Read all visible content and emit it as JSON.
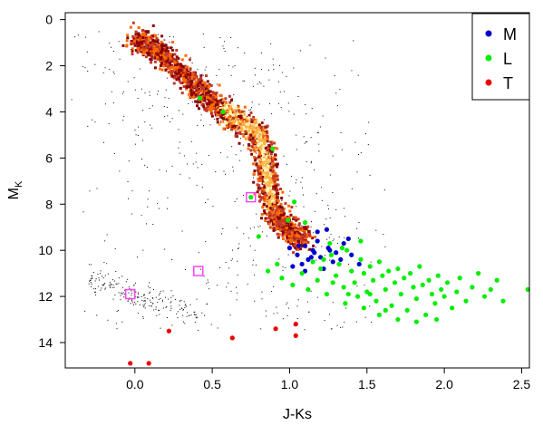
{
  "chart_data": {
    "type": "scatter",
    "title": "",
    "xlabel": "J-Ks",
    "ylabel_main": "M",
    "ylabel_sub": "K",
    "xlim": [
      -0.45,
      2.55
    ],
    "ylim": [
      15.1,
      -0.3
    ],
    "y_inverted": true,
    "x_ticks": [
      0.0,
      0.5,
      1.0,
      1.5,
      2.0,
      2.5
    ],
    "x_tick_labels": [
      "0.0",
      "0.5",
      "1.0",
      "1.5",
      "2.0",
      "2.5"
    ],
    "y_ticks": [
      0,
      2,
      4,
      6,
      8,
      10,
      12,
      14
    ],
    "y_tick_labels": [
      "0",
      "2",
      "4",
      "6",
      "8",
      "10",
      "12",
      "14"
    ],
    "grid": false,
    "legend_position": "top-right",
    "legend": [
      {
        "label": "M",
        "color": "#0000cc"
      },
      {
        "label": "L",
        "color": "#00ee00"
      },
      {
        "label": "T",
        "color": "#ee0000"
      }
    ],
    "background_density": {
      "description_only": false,
      "sequence_ridge": [
        [
          0.0,
          0.8
        ],
        [
          0.12,
          1.2
        ],
        [
          0.25,
          2.0
        ],
        [
          0.38,
          2.8
        ],
        [
          0.5,
          3.6
        ],
        [
          0.62,
          4.2
        ],
        [
          0.72,
          4.6
        ],
        [
          0.8,
          5.0
        ],
        [
          0.84,
          5.8
        ],
        [
          0.86,
          6.8
        ],
        [
          0.88,
          7.8
        ],
        [
          0.92,
          8.6
        ],
        [
          1.0,
          9.2
        ],
        [
          1.1,
          9.6
        ]
      ],
      "colors": [
        "#8b0000",
        "#c0392b",
        "#ff6a00",
        "#ffb347",
        "#fff2b3"
      ]
    },
    "series": [
      {
        "name": "M",
        "color": "#0000cc",
        "points": [
          [
            1.0,
            9.9
          ],
          [
            1.05,
            10.2
          ],
          [
            1.1,
            9.8
          ],
          [
            1.12,
            10.4
          ],
          [
            1.15,
            10.0
          ],
          [
            1.18,
            9.6
          ],
          [
            1.2,
            10.3
          ],
          [
            1.22,
            10.8
          ],
          [
            1.25,
            9.9
          ],
          [
            1.28,
            10.5
          ],
          [
            1.1,
            10.9
          ],
          [
            1.08,
            10.6
          ],
          [
            1.3,
            10.1
          ],
          [
            1.35,
            9.7
          ],
          [
            1.4,
            10.2
          ],
          [
            1.45,
            10.6
          ],
          [
            1.02,
            10.7
          ],
          [
            1.14,
            10.3
          ],
          [
            1.26,
            10.0
          ],
          [
            1.33,
            10.4
          ],
          [
            1.18,
            9.2
          ],
          [
            1.24,
            9.1
          ],
          [
            1.38,
            9.5
          ],
          [
            1.16,
            10.1
          ],
          [
            1.06,
            9.8
          ]
        ]
      },
      {
        "name": "L",
        "color": "#00ee00",
        "points": [
          [
            0.42,
            3.4
          ],
          [
            0.57,
            4.0
          ],
          [
            0.89,
            5.6
          ],
          [
            0.75,
            7.7
          ],
          [
            0.99,
            8.7
          ],
          [
            1.03,
            7.9
          ],
          [
            0.8,
            9.4
          ],
          [
            1.1,
            8.8
          ],
          [
            0.92,
            10.6
          ],
          [
            0.86,
            10.9
          ],
          [
            0.95,
            11.2
          ],
          [
            1.02,
            11.5
          ],
          [
            1.08,
            11.0
          ],
          [
            1.12,
            11.7
          ],
          [
            1.15,
            10.5
          ],
          [
            1.18,
            11.3
          ],
          [
            1.2,
            10.8
          ],
          [
            1.24,
            11.9
          ],
          [
            1.27,
            10.2
          ],
          [
            1.3,
            11.1
          ],
          [
            1.32,
            10.6
          ],
          [
            1.35,
            11.6
          ],
          [
            1.37,
            10.0
          ],
          [
            1.4,
            10.9
          ],
          [
            1.42,
            11.4
          ],
          [
            1.44,
            12.0
          ],
          [
            1.46,
            10.4
          ],
          [
            1.48,
            11.0
          ],
          [
            1.5,
            11.8
          ],
          [
            1.52,
            10.7
          ],
          [
            1.54,
            11.3
          ],
          [
            1.56,
            12.2
          ],
          [
            1.58,
            10.5
          ],
          [
            1.6,
            11.1
          ],
          [
            1.62,
            11.7
          ],
          [
            1.64,
            10.9
          ],
          [
            1.66,
            12.4
          ],
          [
            1.68,
            11.4
          ],
          [
            1.7,
            10.8
          ],
          [
            1.72,
            11.9
          ],
          [
            1.74,
            11.2
          ],
          [
            1.76,
            12.6
          ],
          [
            1.78,
            11.0
          ],
          [
            1.8,
            11.6
          ],
          [
            1.82,
            12.1
          ],
          [
            1.84,
            10.7
          ],
          [
            1.86,
            11.5
          ],
          [
            1.88,
            12.8
          ],
          [
            1.9,
            11.3
          ],
          [
            1.92,
            11.9
          ],
          [
            1.94,
            12.3
          ],
          [
            1.96,
            11.1
          ],
          [
            1.98,
            11.7
          ],
          [
            2.0,
            12.0
          ],
          [
            2.02,
            11.4
          ],
          [
            2.05,
            12.5
          ],
          [
            2.08,
            11.8
          ],
          [
            2.1,
            11.2
          ],
          [
            2.14,
            12.2
          ],
          [
            2.18,
            11.6
          ],
          [
            2.22,
            11.0
          ],
          [
            2.26,
            12.0
          ],
          [
            2.3,
            11.7
          ],
          [
            2.34,
            11.3
          ],
          [
            2.38,
            12.2
          ],
          [
            2.54,
            11.7
          ],
          [
            1.26,
            9.7
          ],
          [
            1.22,
            10.4
          ],
          [
            1.34,
            9.9
          ],
          [
            1.46,
            9.6
          ],
          [
            1.28,
            11.4
          ],
          [
            1.36,
            12.3
          ],
          [
            1.48,
            12.5
          ],
          [
            1.58,
            12.8
          ],
          [
            1.7,
            13.0
          ],
          [
            1.82,
            13.1
          ],
          [
            1.95,
            13.0
          ],
          [
            1.38,
            11.9
          ],
          [
            1.52,
            11.9
          ],
          [
            1.62,
            12.6
          ]
        ]
      },
      {
        "name": "T",
        "color": "#ee0000",
        "points": [
          [
            0.22,
            13.5
          ],
          [
            0.63,
            13.8
          ],
          [
            0.91,
            13.4
          ],
          [
            1.04,
            13.2
          ],
          [
            1.04,
            13.7
          ],
          [
            -0.03,
            14.9
          ],
          [
            0.09,
            14.9
          ]
        ]
      }
    ],
    "highlighted_squares": [
      {
        "x": -0.03,
        "y": 11.9,
        "color": "#ff44ff"
      },
      {
        "x": 0.41,
        "y": 10.9,
        "color": "#ff44ff"
      },
      {
        "x": 0.75,
        "y": 7.7,
        "color": "#ff44ff"
      }
    ]
  }
}
